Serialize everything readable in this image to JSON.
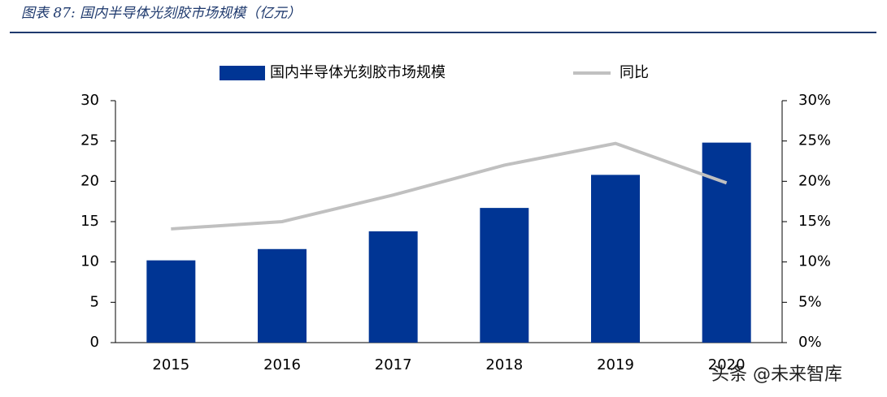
{
  "chart_data": {
    "type": "bar_line",
    "title": "图表 87:  国内半导体光刻胶市场规模（亿元）",
    "categories": [
      "2015",
      "2016",
      "2017",
      "2018",
      "2019",
      "2020"
    ],
    "series": [
      {
        "name": "国内半导体光刻胶市场规模",
        "type": "bar",
        "color": "#003594",
        "values": [
          10.2,
          11.6,
          13.8,
          16.7,
          20.8,
          24.8
        ]
      },
      {
        "name": "同比",
        "type": "line",
        "axis": "y2",
        "color": "#c0c0c0",
        "values": [
          14.1,
          15.0,
          18.3,
          22.0,
          24.7,
          19.8
        ]
      }
    ],
    "ylim": [
      0,
      30
    ],
    "yticks": [
      0,
      5,
      10,
      15,
      20,
      25,
      30
    ],
    "y2lim": [
      0,
      30
    ],
    "y2ticks": [
      {
        "value": 0,
        "label": "0%"
      },
      {
        "value": 5,
        "label": "5%"
      },
      {
        "value": 10,
        "label": "10%"
      },
      {
        "value": 15,
        "label": "15%"
      },
      {
        "value": 20,
        "label": "20%"
      },
      {
        "value": 25,
        "label": "25%"
      },
      {
        "value": 30,
        "label": "30%"
      }
    ],
    "watermark": "头条 @未来智库"
  }
}
